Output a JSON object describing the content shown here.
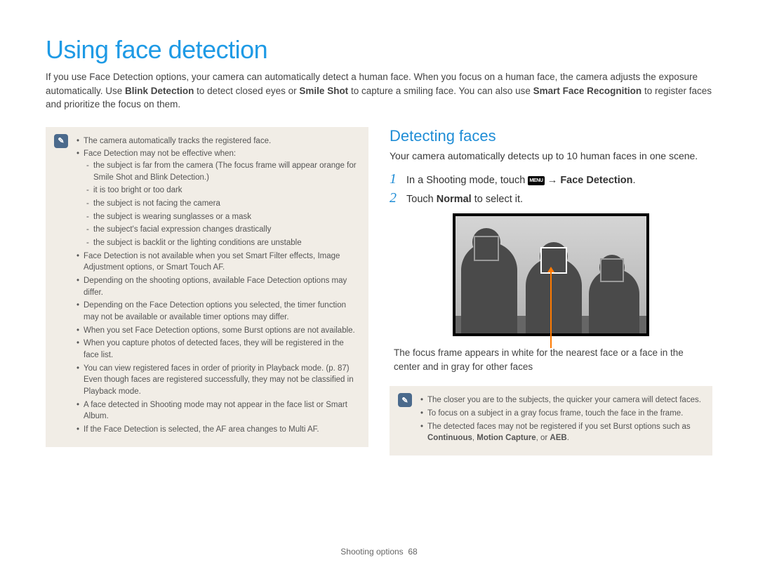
{
  "colors": {
    "title": "#1e9ae5",
    "section": "#1f8dd6",
    "stepnum": "#1f8dd6",
    "notebg": "#f1ede6",
    "noteicon_bg": "#4b6a8c",
    "bodytext": "#3a3a3a",
    "pointer": "#ff7a00"
  },
  "title": "Using face detection",
  "intro_parts": {
    "t1": "If you use Face Detection options, your camera can automatically detect a human face. When you focus on a human face, the camera adjusts the exposure automatically. Use ",
    "b1": "Blink Detection",
    "t2": " to detect closed eyes or ",
    "b2": "Smile Shot",
    "t3": " to capture a smiling face. You can also use ",
    "b3": "Smart Face Recognition",
    "t4": " to register faces and prioritize the focus on them."
  },
  "left_note": {
    "items": [
      "The camera automatically tracks the registered face.",
      "Face Detection may not be effective when:",
      "Face Detection is not available when you set Smart Filter effects, Image Adjustment options, or Smart Touch AF.",
      "Depending on the shooting options, available Face Detection options may differ.",
      "Depending on the Face Detection options you selected, the timer function may not be available or available timer options may differ.",
      "When you set Face Detection options, some Burst options are not available.",
      "When you capture photos of detected faces, they will be registered in the face list.",
      "You can view registered faces in order of priority in Playback mode. (p. 87) Even though faces are registered successfully, they may not be classified in Playback mode.",
      "A face detected in Shooting mode may not appear in the face list or Smart Album.",
      "If the Face Detection is selected, the AF area changes to Multi AF."
    ],
    "sub": [
      "the subject is far from the camera (The focus frame will appear orange for Smile Shot and Blink Detection.)",
      "it is too bright or too dark",
      "the subject is not facing the camera",
      "the subject is wearing sunglasses or a mask",
      "the subject's facial expression changes drastically",
      "the subject is backlit or the lighting conditions are unstable"
    ]
  },
  "right": {
    "section_title": "Detecting faces",
    "section_body": "Your camera automatically detects up to 10 human faces in one scene.",
    "step1_pre": "In a Shooting mode, touch ",
    "step1_menu": "MENU",
    "step1_arrow": " → ",
    "step1_bold": "Face Detection",
    "step1_post": ".",
    "step2_pre": "Touch ",
    "step2_bold": "Normal",
    "step2_post": " to select it.",
    "caption": "The focus frame appears in white for the nearest face or a face in the center and in gray for other faces",
    "note_items": [
      "The closer you are to the subjects, the quicker your camera will detect faces.",
      "To focus on a subject in a gray focus frame, touch the face in the frame."
    ],
    "note_last_pre": "The detected faces may not be registered if you set Burst options such as ",
    "note_last_b1": "Continuous",
    "note_last_s1": ", ",
    "note_last_b2": "Motion Capture",
    "note_last_s2": ", or ",
    "note_last_b3": "AEB",
    "note_last_post": "."
  },
  "footer": {
    "section": "Shooting options",
    "page": "68"
  },
  "note_icon_glyph": "✎"
}
